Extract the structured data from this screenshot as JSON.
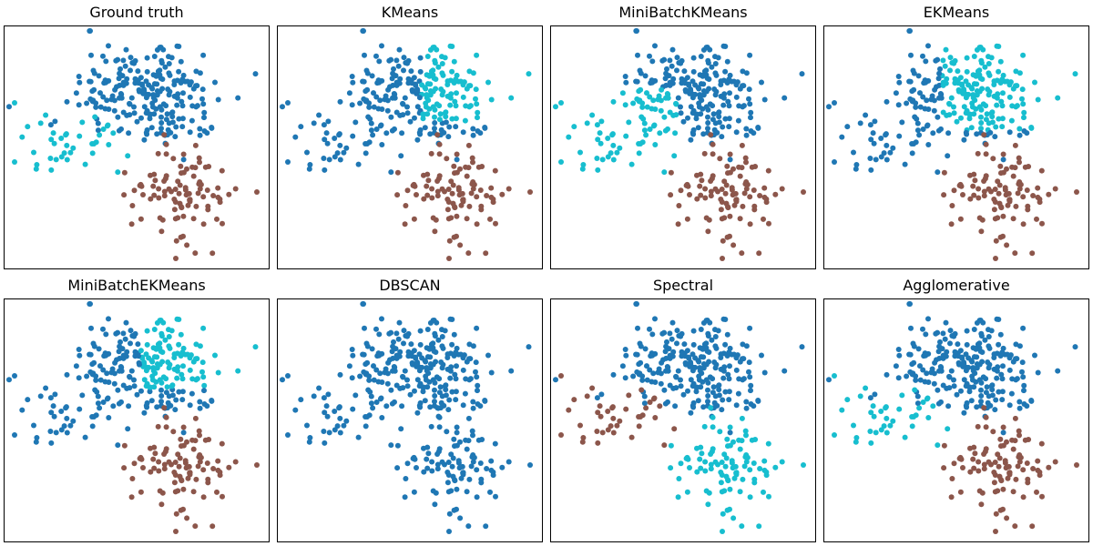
{
  "colors": {
    "a": "#1f77b4",
    "b": "#17becf",
    "c": "#8c564b"
  },
  "chart_data": [
    {
      "type": "scatter",
      "title": "Ground truth"
    },
    {
      "type": "scatter",
      "title": "KMeans"
    },
    {
      "type": "scatter",
      "title": "MiniBatchKMeans"
    },
    {
      "type": "scatter",
      "title": "EKMeans"
    },
    {
      "type": "scatter",
      "title": "MiniBatchEKMeans"
    },
    {
      "type": "scatter",
      "title": "DBSCAN"
    },
    {
      "type": "scatter",
      "title": "Spectral"
    },
    {
      "type": "scatter",
      "title": "Agglomerative"
    }
  ]
}
